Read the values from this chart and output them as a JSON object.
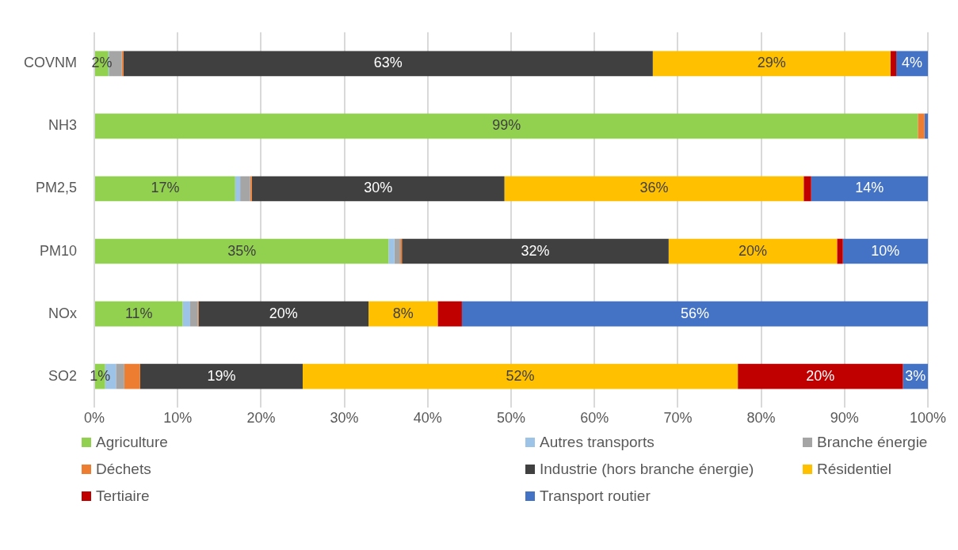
{
  "chart_data": {
    "type": "bar",
    "orientation": "horizontal",
    "stacked": true,
    "categories": [
      "COVNM",
      "NH3",
      "PM2,5",
      "PM10",
      "NOx",
      "SO2"
    ],
    "xlim": [
      0,
      100
    ],
    "xticks": [
      {
        "value": 0,
        "label": "0%"
      },
      {
        "value": 10,
        "label": "10%"
      },
      {
        "value": 20,
        "label": "20%"
      },
      {
        "value": 30,
        "label": "30%"
      },
      {
        "value": 40,
        "label": "40%"
      },
      {
        "value": 50,
        "label": "50%"
      },
      {
        "value": 60,
        "label": "60%"
      },
      {
        "value": 70,
        "label": "70%"
      },
      {
        "value": 80,
        "label": "80%"
      },
      {
        "value": 90,
        "label": "90%"
      },
      {
        "value": 100,
        "label": "100%"
      }
    ],
    "grid": "x",
    "legend": "bottom",
    "series": [
      {
        "name": "Agriculture",
        "color": "#92d050",
        "values": [
          1.7,
          98.8,
          16.9,
          35.3,
          10.6,
          1.3
        ],
        "value_labels": [
          "2%",
          "99%",
          "17%",
          "35%",
          "11%",
          "1%"
        ]
      },
      {
        "name": "Autres transports",
        "color": "#9dc3e6",
        "values": [
          0.1,
          0,
          0.6,
          0.7,
          0.9,
          1.3
        ],
        "value_labels": [
          null,
          null,
          null,
          null,
          null,
          null
        ]
      },
      {
        "name": "Branche énergie",
        "color": "#a5a5a5",
        "values": [
          1.5,
          0,
          1.2,
          0.7,
          0.9,
          1.0
        ],
        "value_labels": [
          null,
          null,
          null,
          null,
          null,
          null
        ]
      },
      {
        "name": "Déchets",
        "color": "#ed7d31",
        "values": [
          0.2,
          0.8,
          0.2,
          0.2,
          0.1,
          1.9
        ],
        "value_labels": [
          null,
          null,
          null,
          null,
          null,
          null
        ]
      },
      {
        "name": "Industrie (hors branche énergie)",
        "color": "#404040",
        "values": [
          63.5,
          0,
          30.3,
          32.0,
          20.4,
          19.5
        ],
        "value_labels": [
          "63%",
          null,
          "30%",
          "32%",
          "20%",
          "19%"
        ]
      },
      {
        "name": "Résidentiel",
        "color": "#ffc000",
        "values": [
          28.5,
          0,
          35.9,
          20.2,
          8.3,
          52.2
        ],
        "value_labels": [
          "29%",
          null,
          "36%",
          "20%",
          "8%",
          "52%"
        ]
      },
      {
        "name": "Tertiaire",
        "color": "#c00000",
        "values": [
          0.7,
          0,
          0.9,
          0.7,
          2.9,
          19.8
        ],
        "value_labels": [
          null,
          null,
          null,
          null,
          null,
          "20%"
        ]
      },
      {
        "name": "Transport routier",
        "color": "#4472c4",
        "values": [
          3.8,
          0.4,
          14.0,
          10.2,
          55.9,
          3.0
        ],
        "value_labels": [
          "4%",
          null,
          "14%",
          "10%",
          "56%",
          "3%"
        ]
      }
    ]
  }
}
